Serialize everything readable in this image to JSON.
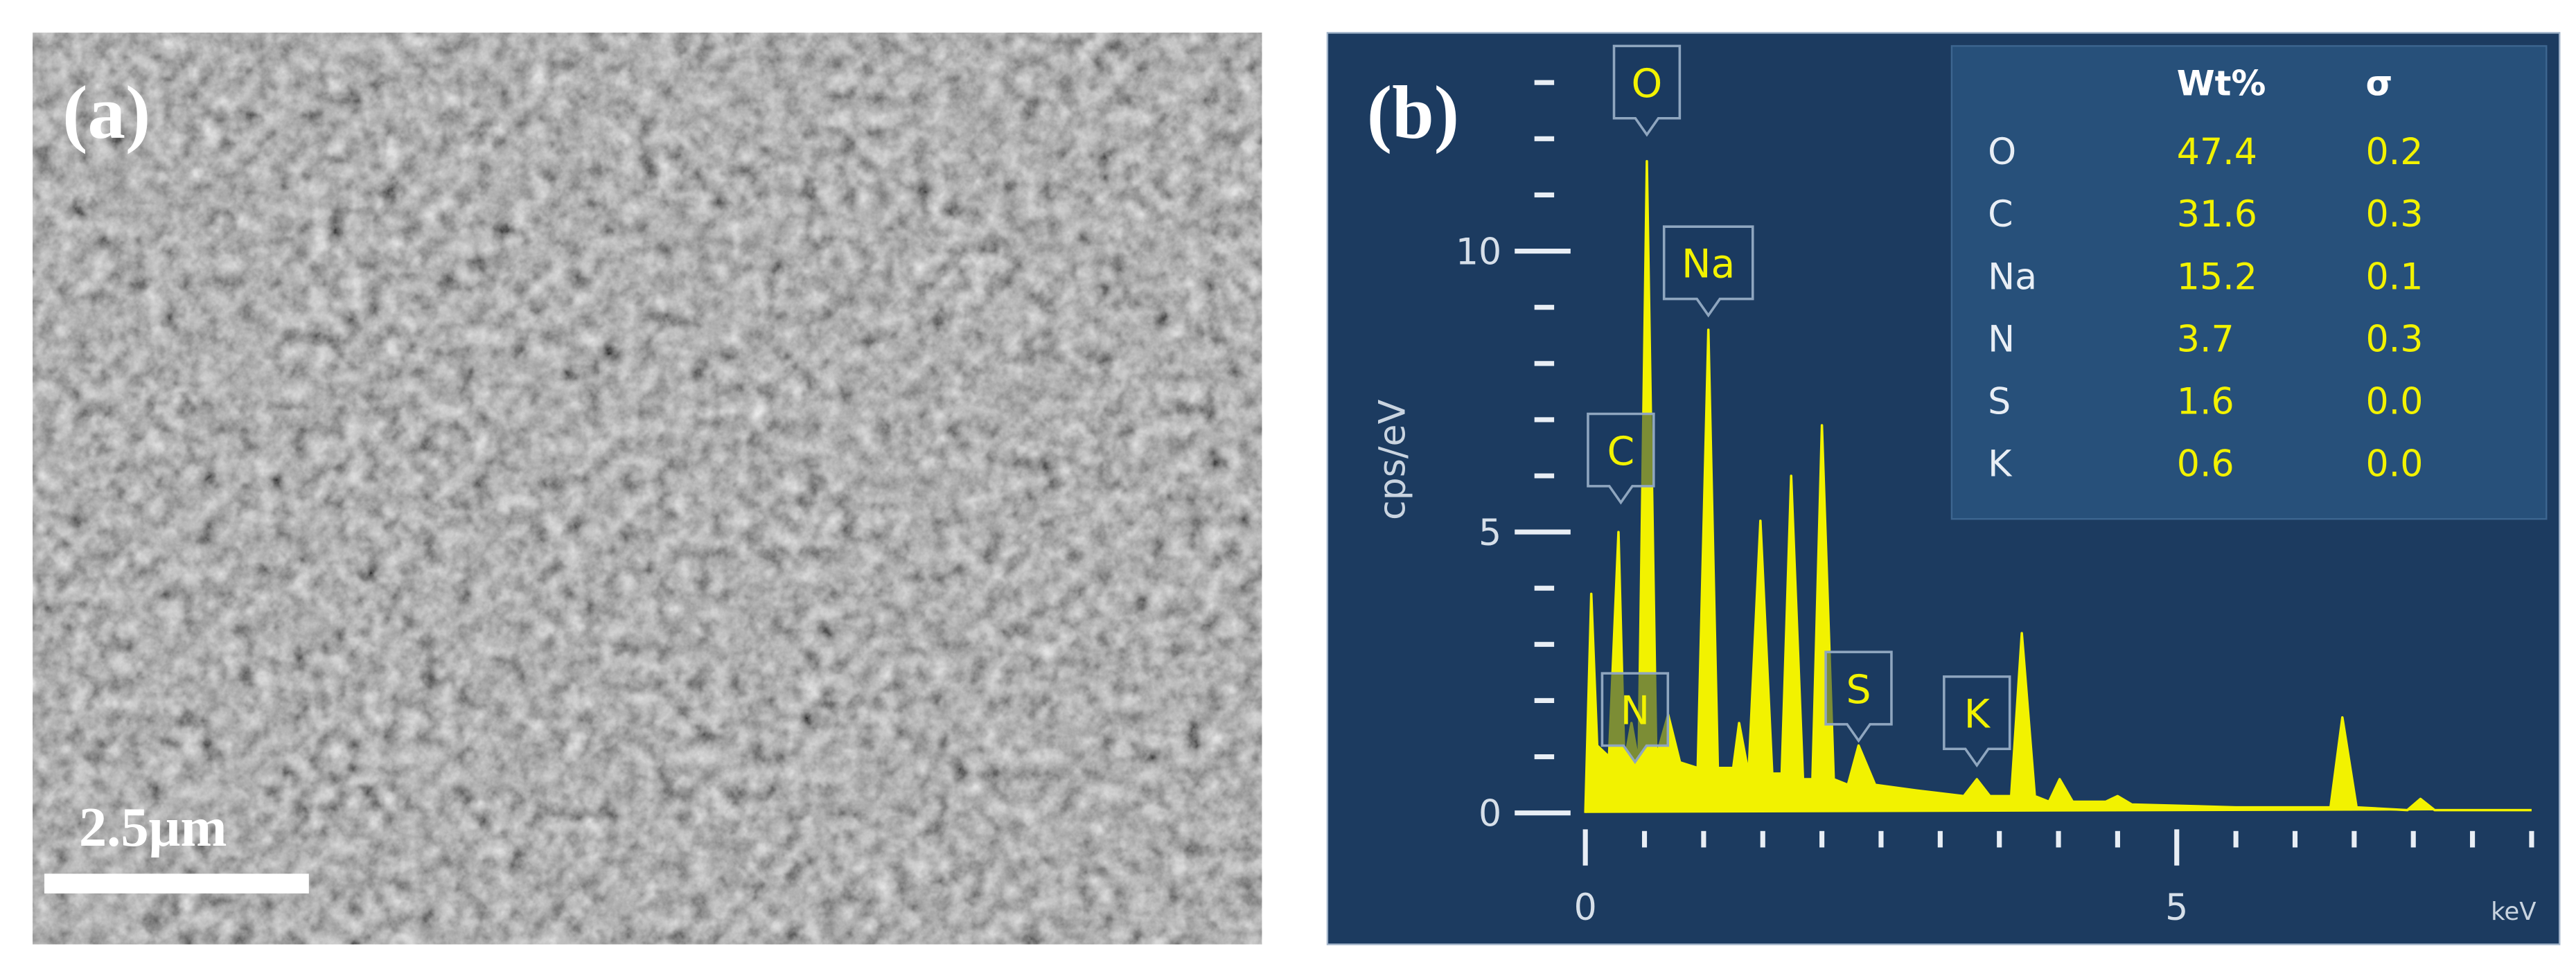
{
  "panel_a": {
    "label": "(a)",
    "scale_bar": "2.5μm"
  },
  "chart_data": {
    "type": "line",
    "panel_label": "(b)",
    "y_label": "cps/eV",
    "x_label": "keV",
    "x": [
      0,
      0.05,
      0.1,
      0.2,
      0.28,
      0.33,
      0.39,
      0.45,
      0.52,
      0.6,
      0.7,
      0.8,
      0.95,
      1.04,
      1.12,
      1.25,
      1.3,
      1.38,
      1.48,
      1.58,
      1.66,
      1.74,
      1.84,
      1.92,
      2.0,
      2.1,
      2.22,
      2.31,
      2.45,
      2.8,
      3.2,
      3.31,
      3.42,
      3.6,
      3.69,
      3.8,
      3.92,
      4.01,
      4.12,
      4.4,
      4.5,
      4.62,
      5.5,
      6.3,
      6.4,
      6.52,
      6.95,
      7.06,
      7.18,
      8
    ],
    "values": [
      0,
      3.9,
      1.2,
      1.0,
      5.0,
      0.9,
      1.6,
      0.9,
      11.6,
      1.0,
      1.75,
      0.9,
      0.8,
      8.6,
      0.8,
      0.8,
      1.6,
      0.7,
      5.2,
      0.7,
      0.7,
      6.0,
      0.6,
      0.6,
      6.9,
      0.6,
      0.5,
      1.2,
      0.5,
      0.4,
      0.3,
      0.6,
      0.3,
      0.3,
      3.2,
      0.3,
      0.2,
      0.6,
      0.2,
      0.2,
      0.3,
      0.15,
      0.1,
      0.1,
      1.7,
      0.1,
      0.05,
      0.25,
      0.05,
      0.05
    ],
    "color": "#f2f200",
    "xlim": [
      0,
      8
    ],
    "ylim": [
      0,
      13.3
    ],
    "xticks": [
      0,
      5
    ],
    "yticks": [
      0,
      5,
      10
    ],
    "x_minor_ticks": [
      0.5,
      1,
      1.5,
      2,
      2.5,
      3,
      3.5,
      4,
      4.5,
      5.5,
      6,
      6.5,
      7,
      7.5,
      8
    ],
    "y_minor_ticks": [
      1,
      2,
      3,
      4,
      6,
      7,
      8,
      9,
      11,
      12,
      13
    ],
    "peak_labels": [
      {
        "text": "O",
        "x": 0.52
      },
      {
        "text": "Na",
        "x": 1.04
      },
      {
        "text": "C",
        "x": 0.3
      },
      {
        "text": "N",
        "x": 0.42
      },
      {
        "text": "S",
        "x": 2.31
      },
      {
        "text": "K",
        "x": 3.31
      }
    ],
    "table": {
      "header": [
        "Wt%",
        "σ"
      ],
      "rows": [
        [
          "O",
          "47.4",
          "0.2"
        ],
        [
          "C",
          "31.6",
          "0.3"
        ],
        [
          "Na",
          "15.2",
          "0.1"
        ],
        [
          "N",
          "3.7",
          "0.3"
        ],
        [
          "S",
          "1.6",
          "0.0"
        ],
        [
          "K",
          "0.6",
          "0.0"
        ]
      ]
    }
  }
}
